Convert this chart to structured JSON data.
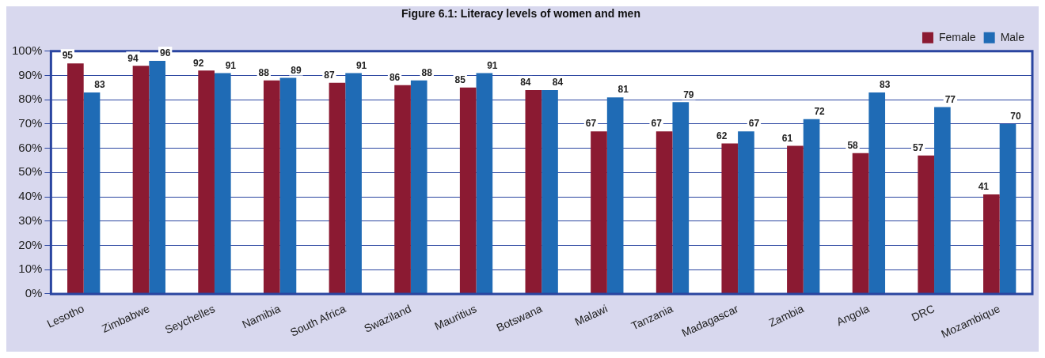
{
  "chart_data": {
    "type": "bar",
    "title": "Figure 6.1: Literacy levels of women and men",
    "categories": [
      "Lesotho",
      "Zimbabwe",
      "Seychelles",
      "Namibia",
      "South Africa",
      "Swaziland",
      "Mauritius",
      "Botswana",
      "Malawi",
      "Tanzania",
      "Madagascar",
      "Zambia",
      "Angola",
      "DRC",
      "Mozambique"
    ],
    "series": [
      {
        "name": "Female",
        "color": "#8b1a32",
        "values": [
          95,
          94,
          92,
          88,
          87,
          86,
          85,
          84,
          67,
          67,
          62,
          61,
          58,
          57,
          41
        ]
      },
      {
        "name": "Male",
        "color": "#1f6bb5",
        "values": [
          83,
          96,
          91,
          89,
          91,
          88,
          91,
          84,
          81,
          79,
          67,
          72,
          83,
          77,
          70
        ]
      }
    ],
    "ylim": [
      0,
      100
    ],
    "yticks": [
      {
        "value": 0,
        "label": "0%"
      },
      {
        "value": 10,
        "label": "10%"
      },
      {
        "value": 20,
        "label": "20%"
      },
      {
        "value": 30,
        "label": "30%"
      },
      {
        "value": 40,
        "label": "40%"
      },
      {
        "value": 50,
        "label": "50%"
      },
      {
        "value": 60,
        "label": "60%"
      },
      {
        "value": 70,
        "label": "70%"
      },
      {
        "value": 80,
        "label": "80%"
      },
      {
        "value": 90,
        "label": "90%"
      },
      {
        "value": 100,
        "label": "100%"
      }
    ],
    "grid": "y",
    "legend": "top right",
    "data_labels": true
  }
}
